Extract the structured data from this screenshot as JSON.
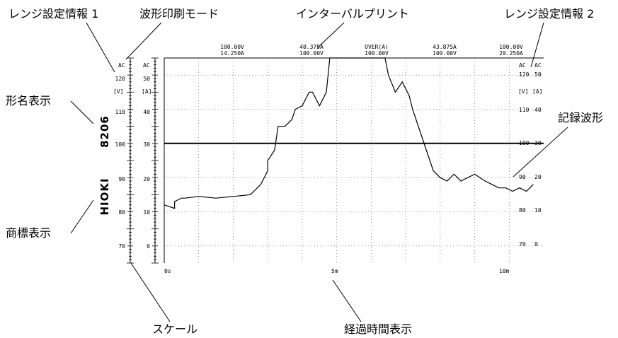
{
  "callouts": {
    "range_info_1": "レンジ設定情報 1",
    "waveform_print_mode": "波形印刷モード",
    "interval_print": "インターバルプリント",
    "range_info_2": "レンジ設定情報 2",
    "model_display": "形名表示",
    "recorded_waveform": "記録波形",
    "trademark_display": "商標表示",
    "scale": "スケール",
    "elapsed_time_display": "経過時間表示"
  },
  "brand": {
    "maker": "HIOKI",
    "model": "8206"
  },
  "print_mode": {
    "left_v": "AC",
    "left_a": "AC",
    "right_v": "AC",
    "right_a": "AC"
  },
  "units": {
    "voltage": "[V]",
    "current": "[A]"
  },
  "interval_readouts": [
    {
      "line1": "100.00V",
      "line2": "14.250A"
    },
    {
      "line1": "40.375A",
      "line2": "100.00V"
    },
    {
      "line1": "OVER(A)",
      "line2": "100.00V"
    },
    {
      "line1": "43.875A",
      "line2": "100.00V"
    },
    {
      "line1": "100.00V",
      "line2": "20.250A"
    }
  ],
  "scales": {
    "voltage_ticks": [
      "120",
      "110",
      "100",
      "90",
      "80",
      "70"
    ],
    "current_ticks": [
      "50",
      "40",
      "30",
      "20",
      "10",
      "0"
    ],
    "right_voltage_ticks": [
      "120",
      "110",
      "100",
      "90",
      "80",
      "70"
    ],
    "right_current_ticks": [
      "50",
      "40",
      "30",
      "20",
      "10",
      "0"
    ]
  },
  "time_labels": [
    "0s",
    "5m",
    "10m"
  ],
  "chart_data": {
    "type": "line",
    "x_unit": "min",
    "xlim": [
      0,
      11
    ],
    "voltage_range": [
      65,
      125
    ],
    "current_range": [
      -5,
      55
    ],
    "series": [
      {
        "unit": "V",
        "x": [
          0,
          11
        ],
        "y": [
          100,
          100
        ]
      },
      {
        "unit": "A",
        "x": [
          0.0,
          0.3,
          0.3,
          0.5,
          0.6,
          1.0,
          1.5,
          2.0,
          2.5,
          2.8,
          3.0,
          3.0,
          3.2,
          3.3,
          3.5,
          3.7,
          3.8,
          4.0,
          4.2,
          4.3,
          4.5,
          4.7,
          4.8,
          5.0,
          5.0,
          5.3,
          5.5,
          5.8,
          6.0,
          6.4,
          6.5,
          6.7,
          6.9,
          7.1,
          7.2,
          7.4,
          7.6,
          7.8,
          8.0,
          8.2,
          8.4,
          8.6,
          8.8,
          9.0,
          9.3,
          9.5,
          9.7,
          9.9,
          10.1,
          10.3,
          10.5,
          10.7
        ],
        "y": [
          12,
          11,
          13,
          14,
          14,
          14.5,
          14,
          14.5,
          15,
          18,
          22,
          25,
          28,
          35,
          35,
          37,
          40,
          41,
          45,
          45,
          41,
          45,
          55,
          55,
          55,
          55,
          55,
          55,
          55,
          55,
          50,
          45,
          48,
          44,
          40,
          34,
          28,
          22,
          20,
          19,
          21,
          19,
          20,
          21,
          19,
          18,
          17,
          17,
          16,
          17,
          16,
          18
        ]
      }
    ]
  }
}
